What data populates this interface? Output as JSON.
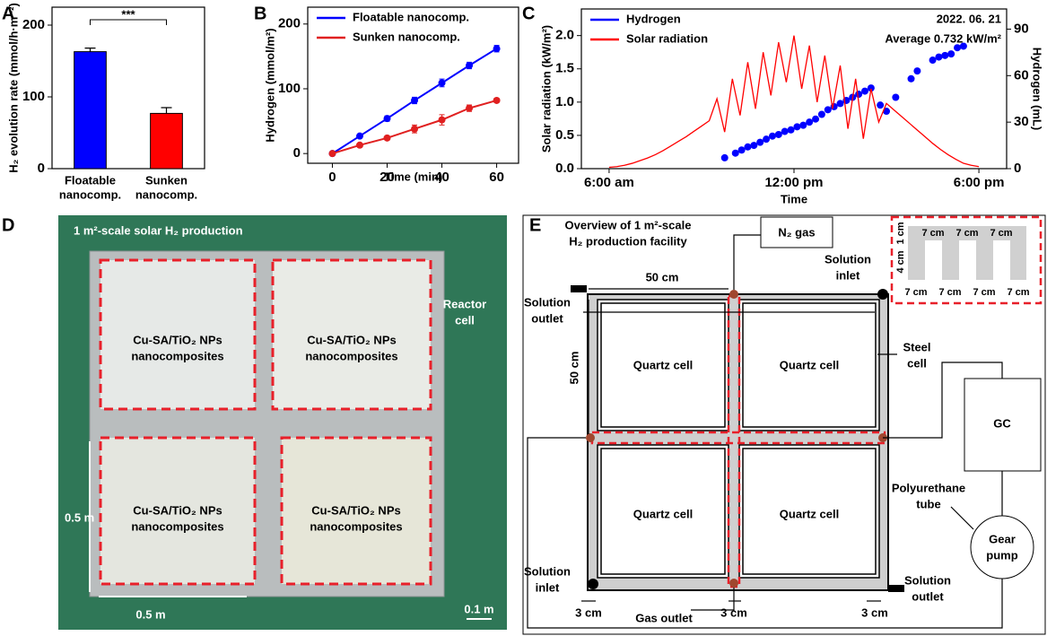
{
  "chart_data": [
    {
      "type": "bar",
      "label": "A",
      "ylabel": "H₂ evolution rate (mmol/h·m⁻²)",
      "categories": [
        [
          "Floatable",
          "nanocomp."
        ],
        [
          "Sunken",
          "nanocomp."
        ]
      ],
      "values": [
        163,
        77
      ],
      "errors": [
        5,
        8
      ],
      "colors": [
        "#0000ff",
        "#ff0000"
      ],
      "significance": "***",
      "ylim": [
        0,
        225
      ],
      "yticks": [
        0,
        100,
        200
      ]
    },
    {
      "type": "line",
      "label": "B",
      "ylabel": "Hydrogen (mmol/m²)",
      "xlabel": "Time (min)",
      "x": [
        0,
        10,
        20,
        30,
        40,
        50,
        60
      ],
      "series": [
        {
          "name": "Floatable nanocomp.",
          "color": "#0000ff",
          "mode": "lines+markers",
          "values": [
            0,
            27,
            54,
            82,
            109,
            136,
            162
          ],
          "errors": [
            0,
            3,
            4,
            5,
            6,
            5,
            5
          ]
        },
        {
          "name": "Sunken nanocomp.",
          "color": "#e02020",
          "mode": "lines+markers",
          "values": [
            0,
            13,
            24,
            38,
            52,
            70,
            82
          ],
          "errors": [
            0,
            2,
            3,
            6,
            8,
            5,
            3
          ]
        }
      ],
      "xlim": [
        -9,
        68
      ],
      "xticks": [
        0,
        20,
        40,
        60
      ],
      "ylim": [
        -15,
        226
      ],
      "yticks": [
        0,
        100,
        200
      ],
      "legend": "top-left"
    },
    {
      "type": "line",
      "label": "C",
      "ylabel": "Solar radiation (kW/m²)",
      "y2label": "Hydrogen (mL)",
      "xlabel": "Time",
      "annotations": [
        "2022. 06. 21",
        "Average 0.732 kW/m²"
      ],
      "series": [
        {
          "name": "Hydrogen",
          "color": "#0000ff",
          "mode": "markers",
          "axis": "y2",
          "x": [
            9.75,
            10.1,
            10.3,
            10.5,
            10.7,
            10.9,
            11.1,
            11.3,
            11.5,
            11.7,
            11.9,
            12.1,
            12.3,
            12.5,
            12.7,
            12.9,
            13.1,
            13.3,
            13.5,
            13.7,
            13.9,
            14.1,
            14.3,
            14.5,
            14.8,
            15.0,
            15.3,
            15.8,
            16.0,
            16.5,
            16.7,
            16.9,
            17.1,
            17.3,
            17.5
          ],
          "values": [
            7,
            10,
            12,
            14,
            15,
            17,
            19,
            21,
            22,
            24,
            25,
            27,
            28,
            30,
            32,
            35,
            38,
            40,
            42,
            44,
            46,
            48,
            50,
            52,
            41,
            37,
            46,
            58,
            63,
            70,
            72,
            73,
            74,
            78,
            79
          ]
        },
        {
          "name": "Solar radiation",
          "color": "#ff0000",
          "mode": "lines",
          "x": [
            6.0,
            6.25,
            6.5,
            6.75,
            7.0,
            7.25,
            7.5,
            7.75,
            8.0,
            8.25,
            8.5,
            8.75,
            9.0,
            9.25,
            9.5,
            9.75,
            10.0,
            10.25,
            10.5,
            10.75,
            11.0,
            11.25,
            11.5,
            11.75,
            12.0,
            12.25,
            12.5,
            12.75,
            13.0,
            13.25,
            13.5,
            13.75,
            14.0,
            14.25,
            14.5,
            14.75,
            15.0,
            15.25,
            15.5,
            15.75,
            16.0,
            16.25,
            16.5,
            16.75,
            17.0,
            17.25,
            17.5,
            17.75,
            18.0
          ],
          "values": [
            0.02,
            0.03,
            0.05,
            0.08,
            0.12,
            0.16,
            0.21,
            0.27,
            0.34,
            0.41,
            0.48,
            0.56,
            0.64,
            0.72,
            1.05,
            0.55,
            1.35,
            0.8,
            1.6,
            0.9,
            1.75,
            1.1,
            1.9,
            1.3,
            2.0,
            1.2,
            1.85,
            1.0,
            1.7,
            0.9,
            1.55,
            0.6,
            1.35,
            0.45,
            1.2,
            0.7,
            0.98,
            0.88,
            0.78,
            0.68,
            0.58,
            0.48,
            0.38,
            0.29,
            0.21,
            0.14,
            0.08,
            0.05,
            0.03
          ]
        }
      ],
      "xlim": [
        5.1,
        18.9
      ],
      "xticks": [
        {
          "value": 6,
          "label": "6:00 am"
        },
        {
          "value": 12,
          "label": "12:00 pm"
        },
        {
          "value": 18,
          "label": "6:00 pm"
        }
      ],
      "ylim": [
        0,
        2.4
      ],
      "yticks": [
        0.0,
        0.5,
        1.0,
        1.5,
        2.0
      ],
      "y2lim": [
        0,
        103
      ],
      "y2ticks": [
        0,
        30,
        60,
        90
      ],
      "legend": "top-left"
    }
  ],
  "panel_d": {
    "label": "D",
    "title": "1 m²-scale solar H₂ production",
    "reactor_cell": [
      "Reactor",
      "cell"
    ],
    "samples": [
      [
        "Cu-SA/TiO₂ NPs",
        "nanocomposites"
      ],
      [
        "Cu-SA/TiO₂ NPs",
        "nanocomposites"
      ],
      [
        "Cu-SA/TiO₂ NPs",
        "nanocomposites"
      ],
      [
        "Cu-SA/TiO₂ NPs",
        "nanocomposites"
      ]
    ],
    "height": "0.5 m",
    "width": "0.5 m",
    "scale": "0.1 m"
  },
  "panel_e": {
    "label": "E",
    "title": [
      "Overview of 1 m²-scale",
      "H₂ production facility"
    ],
    "n2_gas": "N₂ gas",
    "solution_inlet_top": [
      "Solution",
      "inlet"
    ],
    "solution_outlet_left": [
      "Solution",
      "outlet"
    ],
    "length_top": "50 cm",
    "length_left": "50 cm",
    "quartz_cells": [
      "Quartz cell",
      "Quartz cell",
      "Quartz cell",
      "Quartz cell"
    ],
    "steel_cell": [
      "Steel",
      "cell"
    ],
    "gc": "GC",
    "polyurethane_tube": [
      "Polyurethane",
      "tube"
    ],
    "gear_pump": [
      "Gear",
      "pump"
    ],
    "solution_inlet_bottom": [
      "Solution",
      "inlet"
    ],
    "solution_outlet_bottom": [
      "Solution",
      "outlet"
    ],
    "gas_outlet": "Gas outlet",
    "gaps": [
      "3 cm",
      "3 cm",
      "3 cm"
    ],
    "inset": {
      "height_top": "1 cm",
      "height_main": "4 cm",
      "top_widths": [
        "7 cm",
        "7 cm",
        "7 cm"
      ],
      "bottom_widths": [
        "7 cm",
        "7 cm",
        "7 cm",
        "7 cm"
      ]
    }
  }
}
